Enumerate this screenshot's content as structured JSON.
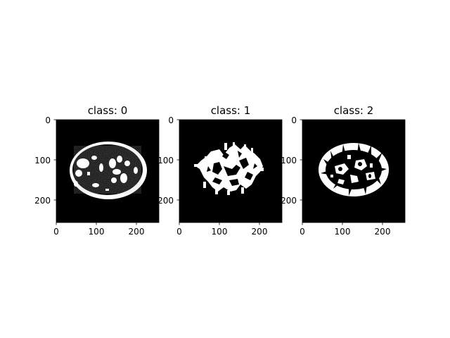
{
  "panels": [
    {
      "title": "class: 0",
      "xticks": [
        "0",
        "100",
        "200"
      ],
      "yticks": [
        "0",
        "100",
        "200"
      ],
      "image": "binary brain MRI mask: skull ring and cerebrospinal fluid regions"
    },
    {
      "title": "class: 1",
      "xticks": [
        "0",
        "100",
        "200"
      ],
      "yticks": [
        "0",
        "100",
        "200"
      ],
      "image": "binary brain MRI mask: white matter"
    },
    {
      "title": "class: 2",
      "xticks": [
        "0",
        "100",
        "200"
      ],
      "yticks": [
        "0",
        "100",
        "200"
      ],
      "image": "binary brain MRI mask: grey matter / cortex"
    }
  ],
  "colors": {
    "background": "#000000",
    "mask": "#ffffff"
  }
}
